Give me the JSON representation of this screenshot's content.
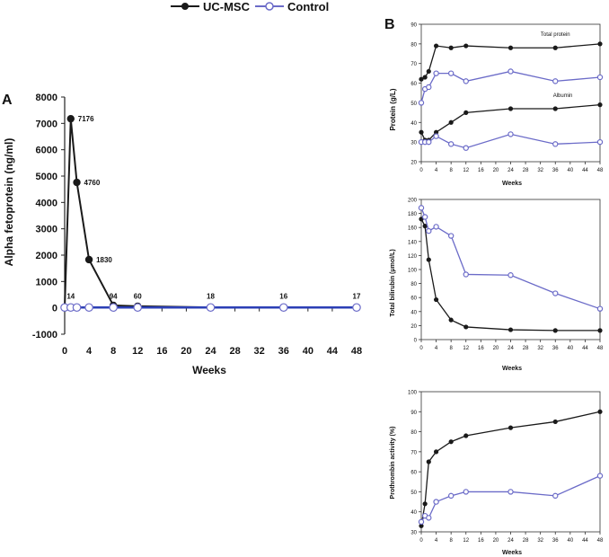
{
  "legend": {
    "items": [
      {
        "label": "UC-MSC",
        "color": "#1a1a1a",
        "marker": "filled"
      },
      {
        "label": "Control",
        "color": "#6b6bc8",
        "marker": "open"
      }
    ]
  },
  "colors": {
    "ucmsc": "#1a1a1a",
    "control": "#6b6bc8",
    "afp_control_line": "#2b3fb5"
  },
  "chart_data": [
    {
      "id": "A",
      "panel_label": "A",
      "type": "line",
      "ylabel": "Alpha fetoprotein (ng/ml)",
      "xlabel": "Weeks",
      "xlim": [
        0,
        48
      ],
      "ylim": [
        -1000,
        8000
      ],
      "xticks": [
        0,
        4,
        8,
        12,
        16,
        20,
        24,
        28,
        32,
        36,
        40,
        44,
        48
      ],
      "xtick_labels": [
        "0",
        "4",
        "8",
        "12",
        "16",
        "20",
        "24",
        "28",
        "32",
        "36",
        "40",
        "44",
        "48"
      ],
      "yticks": [
        -1000,
        0,
        1000,
        2000,
        3000,
        4000,
        5000,
        6000,
        7000,
        8000
      ],
      "ytick_labels": [
        "-1000",
        "0",
        "1000",
        "2000",
        "3000",
        "4000",
        "5000",
        "6000",
        "7000",
        "8000"
      ],
      "series": [
        {
          "name": "UC-MSC",
          "marker": "filled",
          "x": [
            0,
            1,
            2,
            4,
            8,
            12,
            24,
            36,
            48
          ],
          "y": [
            0,
            7176,
            4760,
            1830,
            94,
            60,
            18,
            16,
            17
          ]
        },
        {
          "name": "Control",
          "marker": "open",
          "x": [
            0,
            1,
            2,
            4,
            8,
            12,
            24,
            36,
            48
          ],
          "y": [
            14,
            14,
            14,
            14,
            14,
            14,
            14,
            14,
            14
          ]
        }
      ],
      "annotations": [
        {
          "text": "7176",
          "x": 1,
          "y": 7176
        },
        {
          "text": "4760",
          "x": 2,
          "y": 4760
        },
        {
          "text": "1830",
          "x": 4,
          "y": 1830
        },
        {
          "text": "14",
          "x": 1,
          "y": 14
        },
        {
          "text": "94",
          "x": 8,
          "y": 94
        },
        {
          "text": "60",
          "x": 12,
          "y": 60
        },
        {
          "text": "18",
          "x": 24,
          "y": 18
        },
        {
          "text": "16",
          "x": 36,
          "y": 16
        },
        {
          "text": "17",
          "x": 48,
          "y": 17
        }
      ]
    },
    {
      "id": "B1",
      "panel_label": "B",
      "type": "line",
      "ylabel": "Protein (g/L)",
      "xlabel": "Weeks",
      "xlim": [
        0,
        48
      ],
      "ylim": [
        20,
        90
      ],
      "xticks": [
        0,
        4,
        8,
        12,
        16,
        20,
        24,
        28,
        32,
        36,
        40,
        44,
        48
      ],
      "xtick_labels": [
        "0",
        "4",
        "8",
        "12",
        "16",
        "20",
        "24",
        "28",
        "32",
        "36",
        "40",
        "44",
        "48"
      ],
      "yticks": [
        20,
        30,
        40,
        50,
        60,
        70,
        80,
        90
      ],
      "ytick_labels": [
        "20",
        "30",
        "40",
        "50",
        "60",
        "70",
        "80",
        "90"
      ],
      "series": [
        {
          "name": "UC-MSC total protein",
          "marker": "filled",
          "x": [
            0,
            1,
            2,
            4,
            8,
            12,
            24,
            36,
            48
          ],
          "y": [
            62,
            63,
            66,
            79,
            78,
            79,
            78,
            78,
            80
          ]
        },
        {
          "name": "Control total protein",
          "marker": "open",
          "x": [
            0,
            1,
            2,
            4,
            8,
            12,
            24,
            36,
            48
          ],
          "y": [
            50,
            57,
            58,
            65,
            65,
            61,
            66,
            61,
            63
          ]
        },
        {
          "name": "UC-MSC albumin",
          "marker": "filled",
          "x": [
            0,
            1,
            2,
            4,
            8,
            12,
            24,
            36,
            48
          ],
          "y": [
            35,
            31,
            31,
            35,
            40,
            45,
            47,
            47,
            49
          ]
        },
        {
          "name": "Control albumin",
          "marker": "open",
          "x": [
            0,
            1,
            2,
            4,
            8,
            12,
            24,
            36,
            48
          ],
          "y": [
            30,
            30,
            30,
            33,
            29,
            27,
            34,
            29,
            30
          ]
        }
      ],
      "annotations": [
        {
          "text": "Total protein",
          "x": 36,
          "y": 84
        },
        {
          "text": "Albumin",
          "x": 38,
          "y": 53
        }
      ]
    },
    {
      "id": "B2",
      "panel_label": "",
      "type": "line",
      "ylabel": "Total bilirubin (μmol/L)",
      "xlabel": "Weeks",
      "xlim": [
        0,
        48
      ],
      "ylim": [
        0,
        200
      ],
      "xticks": [
        0,
        4,
        8,
        12,
        16,
        20,
        24,
        28,
        32,
        36,
        40,
        44,
        48
      ],
      "xtick_labels": [
        "0",
        "4",
        "8",
        "12",
        "16",
        "20",
        "24",
        "28",
        "32",
        "36",
        "40",
        "44",
        "48"
      ],
      "yticks": [
        0,
        20,
        40,
        60,
        80,
        100,
        120,
        140,
        160,
        180,
        200
      ],
      "ytick_labels": [
        "0",
        "20",
        "40",
        "60",
        "80",
        "100",
        "120",
        "140",
        "160",
        "180",
        "200"
      ],
      "series": [
        {
          "name": "UC-MSC",
          "marker": "filled",
          "x": [
            0,
            1,
            2,
            4,
            8,
            12,
            24,
            36,
            48
          ],
          "y": [
            172,
            162,
            114,
            57,
            28,
            18,
            14,
            13,
            13
          ]
        },
        {
          "name": "Control",
          "marker": "open",
          "x": [
            0,
            1,
            2,
            4,
            8,
            12,
            24,
            36,
            48
          ],
          "y": [
            188,
            175,
            155,
            161,
            148,
            93,
            92,
            66,
            44
          ]
        }
      ]
    },
    {
      "id": "B3",
      "panel_label": "",
      "type": "line",
      "ylabel": "Prothrombin activity (%)",
      "xlabel": "Weeks",
      "xlim": [
        0,
        48
      ],
      "ylim": [
        30,
        100
      ],
      "xticks": [
        0,
        4,
        8,
        12,
        16,
        20,
        24,
        28,
        32,
        36,
        40,
        44,
        48
      ],
      "xtick_labels": [
        "0",
        "4",
        "8",
        "12",
        "16",
        "20",
        "24",
        "28",
        "32",
        "36",
        "40",
        "44",
        "48"
      ],
      "yticks": [
        30,
        40,
        50,
        60,
        70,
        80,
        90,
        100
      ],
      "ytick_labels": [
        "30",
        "40",
        "50",
        "60",
        "70",
        "80",
        "90",
        "100"
      ],
      "series": [
        {
          "name": "UC-MSC",
          "marker": "filled",
          "x": [
            0,
            1,
            2,
            4,
            8,
            12,
            24,
            36,
            48
          ],
          "y": [
            33,
            44,
            65,
            70,
            75,
            78,
            82,
            85,
            90
          ]
        },
        {
          "name": "Control",
          "marker": "open",
          "x": [
            0,
            1,
            2,
            4,
            8,
            12,
            24,
            36,
            48
          ],
          "y": [
            35,
            38,
            37,
            45,
            48,
            50,
            50,
            48,
            58
          ]
        }
      ]
    }
  ]
}
